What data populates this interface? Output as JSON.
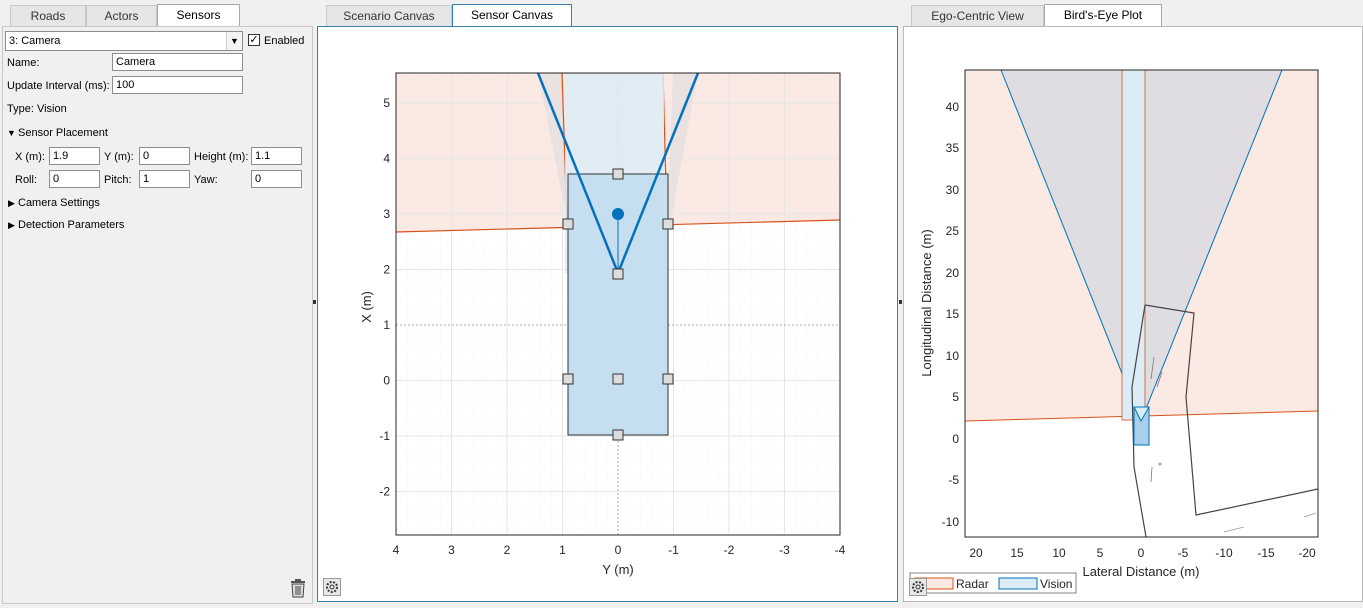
{
  "left": {
    "tabs": [
      "Roads",
      "Actors",
      "Sensors"
    ],
    "sensor_select": "3: Camera",
    "enabled_label": "Enabled",
    "name_label": "Name:",
    "name_value": "Camera",
    "interval_label": "Update Interval (ms):",
    "interval_value": "100",
    "type_text": "Type: Vision",
    "placement_header": "Sensor Placement",
    "x_label": "X (m):",
    "x_value": "1.9",
    "y_label": "Y (m):",
    "y_value": "0",
    "height_label": "Height (m):",
    "height_value": "1.1",
    "roll_label": "Roll:",
    "roll_value": "0",
    "pitch_label": "Pitch:",
    "pitch_value": "1",
    "yaw_label": "Yaw:",
    "yaw_value": "0",
    "camera_settings": "Camera Settings",
    "detection_parameters": "Detection Parameters"
  },
  "middle": {
    "tabs": [
      "Scenario Canvas",
      "Sensor Canvas"
    ],
    "xlabel": "Y (m)",
    "ylabel": "X (m)",
    "xticks": [
      "4",
      "3",
      "2",
      "1",
      "0",
      "-1",
      "-2",
      "-3",
      "-4"
    ],
    "yticks": [
      "5",
      "4",
      "3",
      "2",
      "1",
      "0",
      "-1",
      "-2"
    ]
  },
  "right": {
    "tabs": [
      "Ego-Centric View",
      "Bird's-Eye Plot"
    ],
    "xlabel": "Lateral Distance (m)",
    "ylabel": "Longitudinal Distance (m)",
    "xticks": [
      "20",
      "15",
      "10",
      "5",
      "0",
      "-5",
      "-10",
      "-15",
      "-20"
    ],
    "yticks": [
      "40",
      "35",
      "30",
      "25",
      "20",
      "15",
      "10",
      "5",
      "0",
      "-5",
      "-10"
    ],
    "legend": [
      "Radar",
      "Vision"
    ]
  },
  "colors": {
    "radar": "#d95319",
    "vision": "#0072bd",
    "radar_fill": "#fbe9e4",
    "vision_fill": "#dcecf7"
  }
}
